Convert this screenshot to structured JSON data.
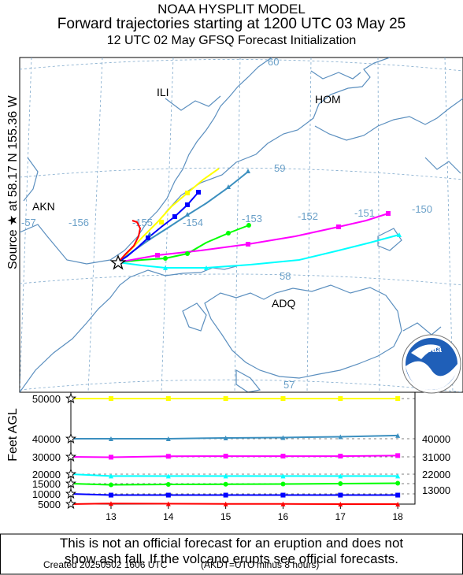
{
  "header": {
    "line1": "NOAA HYSPLIT MODEL",
    "line2": "Forward trajectories starting at 1200 UTC 03 May 25",
    "line3": "12 UTC 02 May    GFSQ  Forecast Initialization"
  },
  "source_label": "Source ★  at   58.17 N  155.36 W",
  "map": {
    "place_labels": [
      "ILI",
      "HOM",
      "AKN",
      "ADQ"
    ],
    "longitude_labels": [
      "-57",
      "-156",
      "-155",
      "-154",
      "-153",
      "-152",
      "-151",
      "-150"
    ],
    "latitude_labels": [
      "60",
      "59",
      "58",
      "57"
    ],
    "coast_color": "#5b8fbf",
    "grid_color": "#7fa9cc"
  },
  "logo": {
    "text": "noaa"
  },
  "chart_data": {
    "type": "line",
    "title": "",
    "xlabel": "",
    "ylabel": "Feet AGL",
    "x": [
      13,
      14,
      15,
      16,
      17,
      18
    ],
    "x_tick_labels": [
      "13",
      "14",
      "15",
      "16",
      "17",
      "18"
    ],
    "ylim": [
      5000,
      50000
    ],
    "y_tick_labels_left": [
      "50000",
      "40000",
      "30000",
      "20000",
      "15000",
      "10000",
      "5000"
    ],
    "y_tick_labels_right": [
      "40000",
      "31000",
      "22000",
      "13000"
    ],
    "series": [
      {
        "color": "#ffff00",
        "marker": "square",
        "start_ft": 50000,
        "values": [
          50000,
          50000,
          50000,
          50000,
          50000,
          50000
        ]
      },
      {
        "color": "#3b8fbf",
        "marker": "triangle",
        "start_ft": 40000,
        "values": [
          40000,
          40000,
          40200,
          40300,
          40500,
          40800
        ]
      },
      {
        "color": "#ff00ff",
        "marker": "square",
        "start_ft": 30000,
        "values": [
          29800,
          30300,
          30400,
          30400,
          30400,
          30700
        ]
      },
      {
        "color": "#00ffff",
        "marker": "triangle",
        "start_ft": 20000,
        "values": [
          19000,
          19000,
          19000,
          19000,
          19000,
          19000
        ]
      },
      {
        "color": "#00ff00",
        "marker": "circle",
        "start_ft": 15000,
        "values": [
          14400,
          14600,
          14700,
          14800,
          15000,
          15200
        ]
      },
      {
        "color": "#0000ff",
        "marker": "square",
        "start_ft": 10000,
        "values": [
          9400,
          9400,
          9400,
          9400,
          9400,
          9400
        ]
      },
      {
        "color": "#ff0000",
        "marker": "triangle",
        "start_ft": 5000,
        "values": [
          5300,
          5200,
          5100,
          5100,
          5000,
          5000
        ]
      }
    ]
  },
  "footer": {
    "disclaimer_line1": "This is not an official forecast for an eruption and does not",
    "disclaimer_line2": "show ash fall. If the volcano erupts see official forecasts.",
    "created": "Created 20250502 1606 UTC",
    "timezone_note": "(AKDT=UTC minus 8 hours)"
  }
}
